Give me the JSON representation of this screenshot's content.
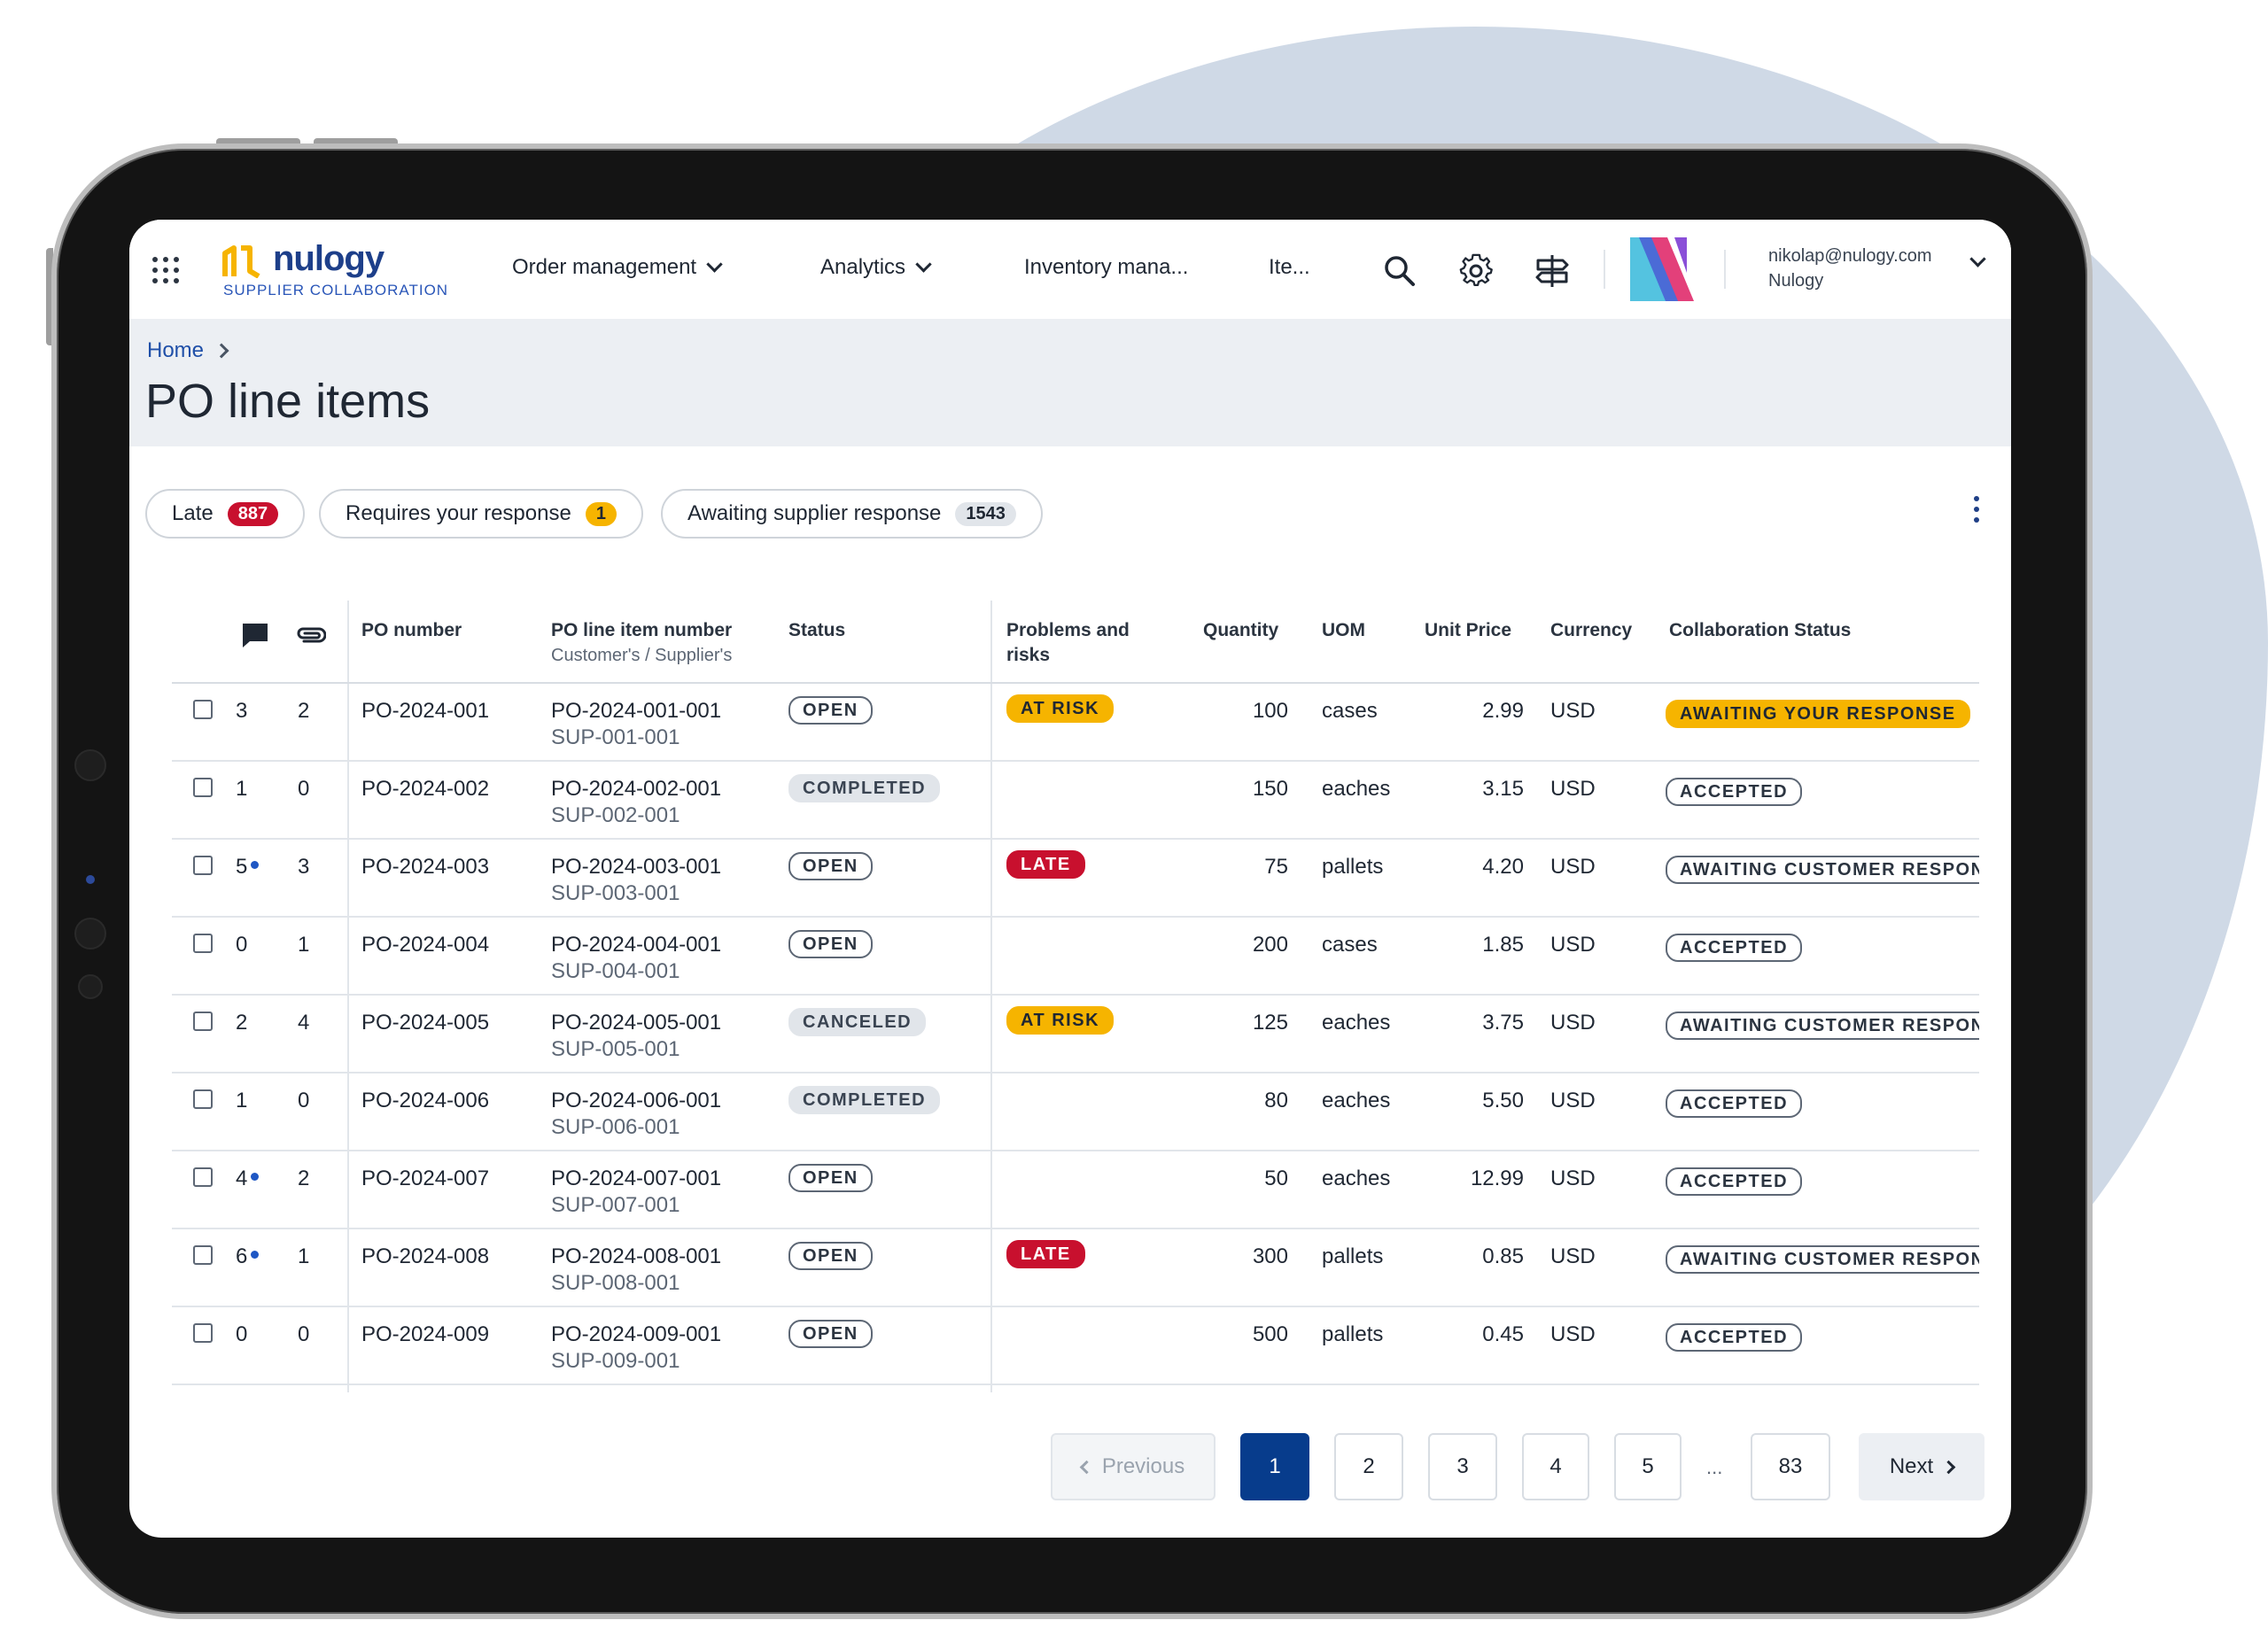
{
  "brand": {
    "name": "nulogy",
    "subtitle": "SUPPLIER COLLABORATION"
  },
  "nav": {
    "items": [
      "Order management",
      "Analytics",
      "Inventory mana...",
      "Ite..."
    ],
    "user_email": "nikolap@nulogy.com",
    "user_org": "Nulogy"
  },
  "breadcrumb": {
    "home": "Home"
  },
  "page_title": "PO line items",
  "filters": [
    {
      "label": "Late",
      "count": "887"
    },
    {
      "label": "Requires your response",
      "count": "1"
    },
    {
      "label": "Awaiting supplier response",
      "count": "1543"
    }
  ],
  "table": {
    "headers": {
      "po_number": "PO number",
      "po_line": "PO line item number",
      "po_line_sub": "Customer's / Supplier's",
      "status": "Status",
      "problems_1": "Problems and",
      "problems_2": "risks",
      "quantity": "Quantity",
      "uom": "UOM",
      "unit_price": "Unit Price",
      "currency": "Currency",
      "collab": "Collaboration Status"
    },
    "rows": [
      {
        "comments": "3",
        "comments_unread": false,
        "attachments": "2",
        "po": "PO-2024-001",
        "line": "PO-2024-001-001",
        "sup": "SUP-001-001",
        "status": "OPEN",
        "problem": "AT RISK",
        "qty": "100",
        "uom": "cases",
        "price": "2.99",
        "currency": "USD",
        "collab": "AWAITING YOUR RESPONSE"
      },
      {
        "comments": "1",
        "comments_unread": false,
        "attachments": "0",
        "po": "PO-2024-002",
        "line": "PO-2024-002-001",
        "sup": "SUP-002-001",
        "status": "COMPLETED",
        "problem": "",
        "qty": "150",
        "uom": "eaches",
        "price": "3.15",
        "currency": "USD",
        "collab": "ACCEPTED"
      },
      {
        "comments": "5",
        "comments_unread": true,
        "attachments": "3",
        "po": "PO-2024-003",
        "line": "PO-2024-003-001",
        "sup": "SUP-003-001",
        "status": "OPEN",
        "problem": "LATE",
        "qty": "75",
        "uom": "pallets",
        "price": "4.20",
        "currency": "USD",
        "collab": "AWAITING CUSTOMER RESPONSE"
      },
      {
        "comments": "0",
        "comments_unread": false,
        "attachments": "1",
        "po": "PO-2024-004",
        "line": "PO-2024-004-001",
        "sup": "SUP-004-001",
        "status": "OPEN",
        "problem": "",
        "qty": "200",
        "uom": "cases",
        "price": "1.85",
        "currency": "USD",
        "collab": "ACCEPTED"
      },
      {
        "comments": "2",
        "comments_unread": false,
        "attachments": "4",
        "po": "PO-2024-005",
        "line": "PO-2024-005-001",
        "sup": "SUP-005-001",
        "status": "CANCELED",
        "problem": "AT RISK",
        "qty": "125",
        "uom": "eaches",
        "price": "3.75",
        "currency": "USD",
        "collab": "AWAITING CUSTOMER RESPONSE"
      },
      {
        "comments": "1",
        "comments_unread": false,
        "attachments": "0",
        "po": "PO-2024-006",
        "line": "PO-2024-006-001",
        "sup": "SUP-006-001",
        "status": "COMPLETED",
        "problem": "",
        "qty": "80",
        "uom": "eaches",
        "price": "5.50",
        "currency": "USD",
        "collab": "ACCEPTED"
      },
      {
        "comments": "4",
        "comments_unread": true,
        "attachments": "2",
        "po": "PO-2024-007",
        "line": "PO-2024-007-001",
        "sup": "SUP-007-001",
        "status": "OPEN",
        "problem": "",
        "qty": "50",
        "uom": "eaches",
        "price": "12.99",
        "currency": "USD",
        "collab": "ACCEPTED"
      },
      {
        "comments": "6",
        "comments_unread": true,
        "attachments": "1",
        "po": "PO-2024-008",
        "line": "PO-2024-008-001",
        "sup": "SUP-008-001",
        "status": "OPEN",
        "problem": "LATE",
        "qty": "300",
        "uom": "pallets",
        "price": "0.85",
        "currency": "USD",
        "collab": "AWAITING CUSTOMER RESPONSE"
      },
      {
        "comments": "0",
        "comments_unread": false,
        "attachments": "0",
        "po": "PO-2024-009",
        "line": "PO-2024-009-001",
        "sup": "SUP-009-001",
        "status": "OPEN",
        "problem": "",
        "qty": "500",
        "uom": "pallets",
        "price": "0.45",
        "currency": "USD",
        "collab": "ACCEPTED"
      }
    ]
  },
  "pagination": {
    "previous": "Previous",
    "next": "Next",
    "pages": [
      "1",
      "2",
      "3",
      "4",
      "5"
    ],
    "ellipsis": "...",
    "last": "83",
    "current": "1"
  },
  "colors": {
    "accent_blue": "#073c8c",
    "late_red": "#c8102e",
    "warning_yellow": "#f6b400",
    "backdrop_blob": "#cfd9e6"
  },
  "icons": {
    "apps": "apps-grid-icon",
    "search": "search-icon",
    "settings": "gear-icon",
    "signpost": "signpost-icon",
    "comments": "comment-icon",
    "attachments": "paperclip-icon",
    "more": "kebab-menu-icon"
  }
}
